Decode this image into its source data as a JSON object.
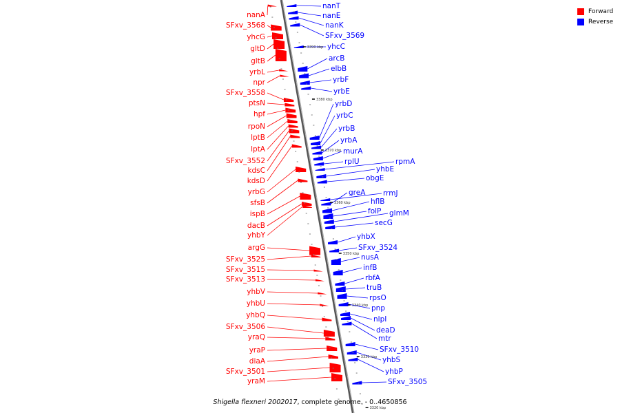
{
  "legend": {
    "forward_label": "Forward",
    "reverse_label": "Reverse",
    "forward_color": "#ff0000",
    "reverse_color": "#0000ff"
  },
  "caption": {
    "organism": "Shigella flexneri 2002017",
    "rest": ", complete genome. - 0..4650856"
  },
  "ticks": [
    "3390 kbp",
    "3380 kbp",
    "3370 kbp",
    "3360 kbp",
    "3350 kbp",
    "3340 kbp",
    "3330 kbp",
    "3320 kbp"
  ],
  "forward_genes": [
    "nanA",
    "SFxv_3568",
    "yhcG",
    "gltD",
    "gltB",
    "yrbL",
    "npr",
    "SFxv_3558",
    "ptsN",
    "hpf",
    "rpoN",
    "lptB",
    "lptA",
    "SFxv_3552",
    "kdsC",
    "kdsD",
    "yrbG",
    "sfsB",
    "ispB",
    "dacB",
    "yhbY",
    "argG",
    "SFxv_3525",
    "SFxv_3515",
    "SFxv_3513",
    "yhbV",
    "yhbU",
    "yhbQ",
    "SFxv_3506",
    "yraQ",
    "yraP",
    "diaA",
    "SFxv_3501",
    "yraM"
  ],
  "reverse_genes": [
    "nanT",
    "nanE",
    "nanK",
    "SFxv_3569",
    "yhcC",
    "arcB",
    "elbB",
    "yrbF",
    "yrbE",
    "yrbD",
    "yrbC",
    "yrbB",
    "yrbA",
    "murA",
    "rplU",
    "rpmA",
    "yhbE",
    "obgE",
    "rrmJ",
    "greA",
    "hflB",
    "folP",
    "glmM",
    "secG",
    "yhbX",
    "SFxv_3524",
    "nusA",
    "infB",
    "rbfA",
    "truB",
    "rpsO",
    "pnp",
    "nlpI",
    "deaD",
    "mtr",
    "SFxv_3510",
    "yhbS",
    "yhbP",
    "SFxv_3505"
  ]
}
